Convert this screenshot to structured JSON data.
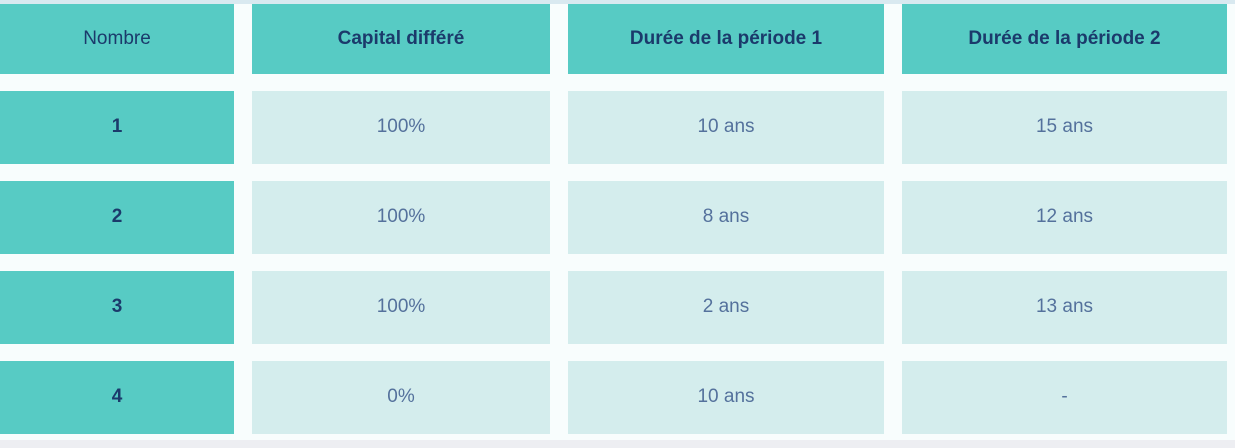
{
  "table": {
    "columns": [
      {
        "label": "Nombre"
      },
      {
        "label": "Capital différé"
      },
      {
        "label": "Durée de la période 1"
      },
      {
        "label": "Durée de la période 2"
      }
    ],
    "rows": [
      {
        "nombre": "1",
        "capital_differe": "100%",
        "duree_periode_1": "10 ans",
        "duree_periode_2": "15 ans"
      },
      {
        "nombre": "2",
        "capital_differe": "100%",
        "duree_periode_1": "8 ans",
        "duree_periode_2": "12 ans"
      },
      {
        "nombre": "3",
        "capital_differe": "100%",
        "duree_periode_1": "2 ans",
        "duree_periode_2": "13 ans"
      },
      {
        "nombre": "4",
        "capital_differe": "0%",
        "duree_periode_1": "10 ans",
        "duree_periode_2": "-"
      }
    ]
  },
  "colors": {
    "teal": "#57cbc4",
    "light_cell": "#d4eded",
    "header_text": "#1b3a6b",
    "cell_text": "#54719c",
    "gutter": "#f8fdfd",
    "top_strip": "#d9e9f0",
    "bottom_strip": "#edeef2"
  }
}
